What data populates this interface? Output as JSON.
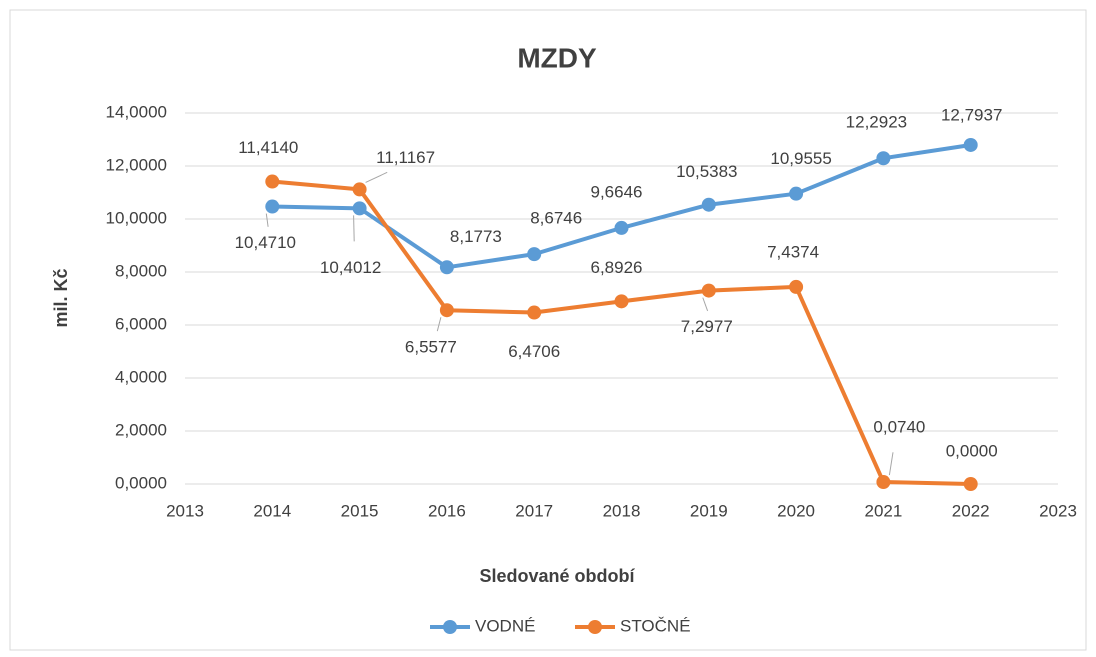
{
  "chart_data": {
    "type": "line",
    "title": "MZDY",
    "x_label": "Sledované období",
    "y_label": "mil. Kč",
    "x": [
      2014,
      2015,
      2016,
      2017,
      2018,
      2019,
      2020,
      2021,
      2022
    ],
    "series": [
      {
        "name": "VODNÉ",
        "color": "#5b9bd5",
        "values": [
          10.471,
          10.4012,
          8.1773,
          8.6746,
          9.6646,
          10.5383,
          10.9555,
          12.2923,
          12.7937
        ],
        "value_labels": [
          "10,4710",
          "10,4012",
          "8,1773",
          "8,6746",
          "9,6646",
          "10,5383",
          "10,9555",
          "12,2923",
          "12,7937"
        ]
      },
      {
        "name": "STOČNÉ",
        "color": "#ed7d31",
        "values": [
          11.414,
          11.1167,
          6.5577,
          6.4706,
          6.8926,
          7.2977,
          7.4374,
          0.074,
          0
        ],
        "value_labels": [
          "11,4140",
          "11,1167",
          "6,5577",
          "6,4706",
          "6,8926",
          "7,2977",
          "7,4374",
          "0,0740",
          "0,0000"
        ]
      }
    ],
    "xlim": [
      2013,
      2023
    ],
    "xticks": [
      2013,
      2014,
      2015,
      2016,
      2017,
      2018,
      2019,
      2020,
      2021,
      2022,
      2023
    ],
    "ylim": [
      0,
      14
    ],
    "yticks": [
      {
        "value": 0,
        "label": "0,0000"
      },
      {
        "value": 2,
        "label": "2,0000"
      },
      {
        "value": 4,
        "label": "4,0000"
      },
      {
        "value": 6,
        "label": "6,0000"
      },
      {
        "value": 8,
        "label": "8,0000"
      },
      {
        "value": 10,
        "label": "10,0000"
      },
      {
        "value": 12,
        "label": "12,0000"
      },
      {
        "value": 14,
        "label": "14,0000"
      }
    ],
    "grid": true,
    "legend": "bottom"
  }
}
